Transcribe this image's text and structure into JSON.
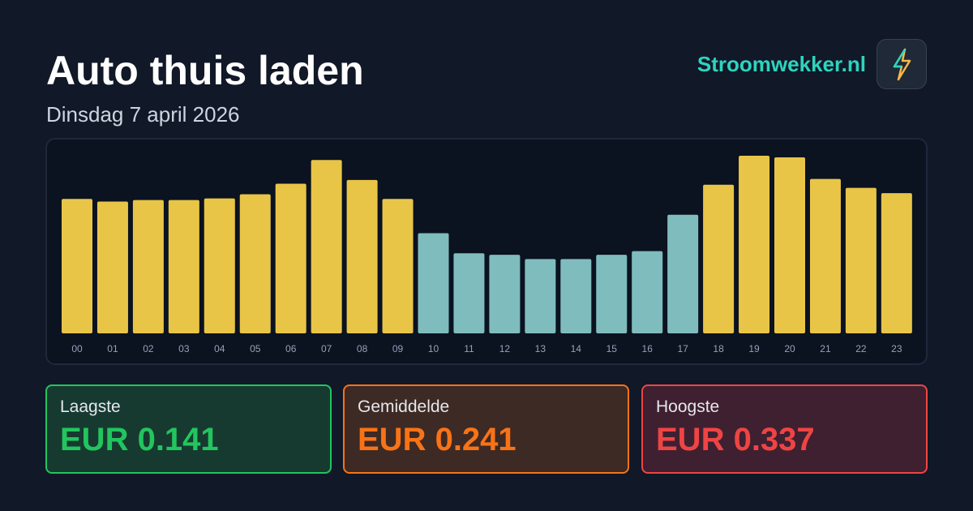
{
  "header": {
    "title": "Auto thuis laden",
    "subtitle": "Dinsdag 7 april 2026",
    "brand": "Stroomwekker.nl"
  },
  "chart_data": {
    "type": "bar",
    "categories": [
      "00",
      "01",
      "02",
      "03",
      "04",
      "05",
      "06",
      "07",
      "08",
      "09",
      "10",
      "11",
      "12",
      "13",
      "14",
      "15",
      "16",
      "17",
      "18",
      "19",
      "20",
      "21",
      "22",
      "23"
    ],
    "values": [
      0.255,
      0.25,
      0.253,
      0.253,
      0.256,
      0.264,
      0.284,
      0.329,
      0.291,
      0.255,
      0.19,
      0.152,
      0.149,
      0.141,
      0.141,
      0.149,
      0.156,
      0.225,
      0.282,
      0.337,
      0.334,
      0.293,
      0.276,
      0.266
    ],
    "colors": [
      "#e8c547",
      "#e8c547",
      "#e8c547",
      "#e8c547",
      "#e8c547",
      "#e8c547",
      "#e8c547",
      "#e8c547",
      "#e8c547",
      "#e8c547",
      "#7fbcbd",
      "#7fbcbd",
      "#7fbcbd",
      "#7fbcbd",
      "#7fbcbd",
      "#7fbcbd",
      "#7fbcbd",
      "#7fbcbd",
      "#e8c547",
      "#e8c547",
      "#e8c547",
      "#e8c547",
      "#e8c547",
      "#e8c547"
    ]
  },
  "cards": [
    {
      "label": "Laagste",
      "value": "EUR 0.141"
    },
    {
      "label": "Gemiddelde",
      "value": "EUR 0.241"
    },
    {
      "label": "Hoogste",
      "value": "EUR 0.337"
    }
  ]
}
